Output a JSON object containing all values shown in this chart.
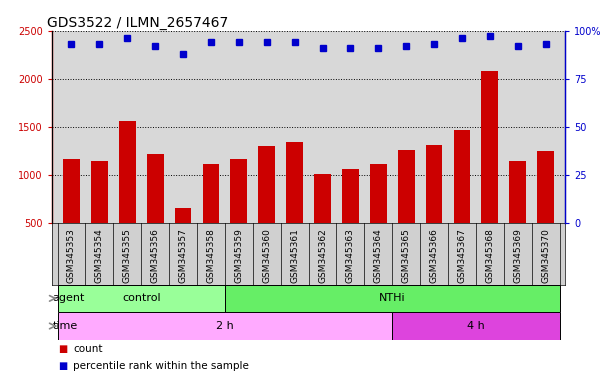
{
  "title": "GDS3522 / ILMN_2657467",
  "samples": [
    "GSM345353",
    "GSM345354",
    "GSM345355",
    "GSM345356",
    "GSM345357",
    "GSM345358",
    "GSM345359",
    "GSM345360",
    "GSM345361",
    "GSM345362",
    "GSM345363",
    "GSM345364",
    "GSM345365",
    "GSM345366",
    "GSM345367",
    "GSM345368",
    "GSM345369",
    "GSM345370"
  ],
  "counts": [
    1170,
    1150,
    1560,
    1220,
    660,
    1110,
    1170,
    1300,
    1340,
    1010,
    1060,
    1110,
    1260,
    1310,
    1470,
    2080,
    1150,
    1250
  ],
  "percentile_ranks": [
    93,
    93,
    96,
    92,
    88,
    94,
    94,
    94,
    94,
    91,
    91,
    91,
    92,
    93,
    96,
    97,
    92,
    93
  ],
  "ylim_left": [
    500,
    2500
  ],
  "ylim_right": [
    0,
    100
  ],
  "yticks_left": [
    500,
    1000,
    1500,
    2000,
    2500
  ],
  "yticks_right": [
    0,
    25,
    50,
    75,
    100
  ],
  "bar_color": "#cc0000",
  "dot_color": "#0000cc",
  "agent_groups": [
    {
      "label": "control",
      "start": 0,
      "end": 6,
      "color": "#99ff99"
    },
    {
      "label": "NTHi",
      "start": 6,
      "end": 18,
      "color": "#66ee66"
    }
  ],
  "time_groups": [
    {
      "label": "2 h",
      "start": 0,
      "end": 12,
      "color": "#ffaaff"
    },
    {
      "label": "4 h",
      "start": 12,
      "end": 18,
      "color": "#dd44dd"
    }
  ],
  "legend_count_label": "count",
  "legend_percentile_label": "percentile rank within the sample",
  "agent_label": "agent",
  "time_label": "time",
  "plot_bg_color": "#d8d8d8",
  "tick_bg_color": "#d0d0d0",
  "title_fontsize": 10,
  "tick_fontsize": 7
}
